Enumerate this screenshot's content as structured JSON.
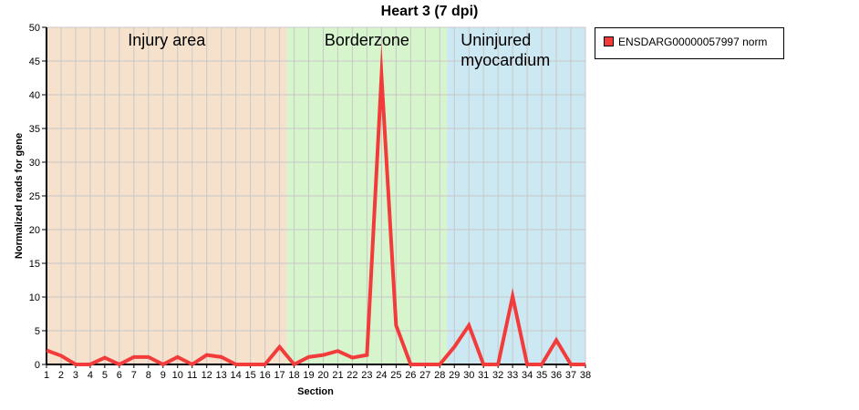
{
  "chart_data": {
    "type": "line",
    "title": "Heart 3 (7 dpi)",
    "xlabel": "Section",
    "ylabel": "Normalized reads for gene",
    "x": [
      1,
      2,
      3,
      4,
      5,
      6,
      7,
      8,
      9,
      10,
      11,
      12,
      13,
      14,
      15,
      16,
      17,
      18,
      19,
      20,
      21,
      22,
      23,
      24,
      25,
      26,
      27,
      28,
      29,
      30,
      31,
      32,
      33,
      34,
      35,
      36,
      37,
      38
    ],
    "xlim": [
      1,
      38
    ],
    "ylim": [
      0,
      50
    ],
    "yticks": [
      0,
      5,
      10,
      15,
      20,
      25,
      30,
      35,
      40,
      45,
      50
    ],
    "grid": true,
    "legend_position": "right-top",
    "regions": [
      {
        "label_lines": [
          "Injury area"
        ],
        "start": 1,
        "end": 17.5,
        "color": "#f5e1cc"
      },
      {
        "label_lines": [
          "Borderzone"
        ],
        "start": 17.5,
        "end": 28.5,
        "color": "#d6f5cc"
      },
      {
        "label_lines": [
          "Uninjured",
          "myocardium"
        ],
        "start": 28.5,
        "end": 38,
        "color": "#cce8f3"
      }
    ],
    "series": [
      {
        "name": "ENSDARG00000057997 norm",
        "color": "#f23c3c",
        "values": [
          2.1,
          1.3,
          0,
          0,
          1.0,
          0,
          1.1,
          1.1,
          0,
          1.1,
          0,
          1.4,
          1.1,
          0,
          0,
          0,
          2.6,
          0,
          1.1,
          1.4,
          2.0,
          1.0,
          1.4,
          42.8,
          5.8,
          0,
          0,
          0,
          2.6,
          5.8,
          0,
          0,
          10.1,
          0,
          0,
          3.6,
          0,
          0
        ]
      }
    ]
  }
}
